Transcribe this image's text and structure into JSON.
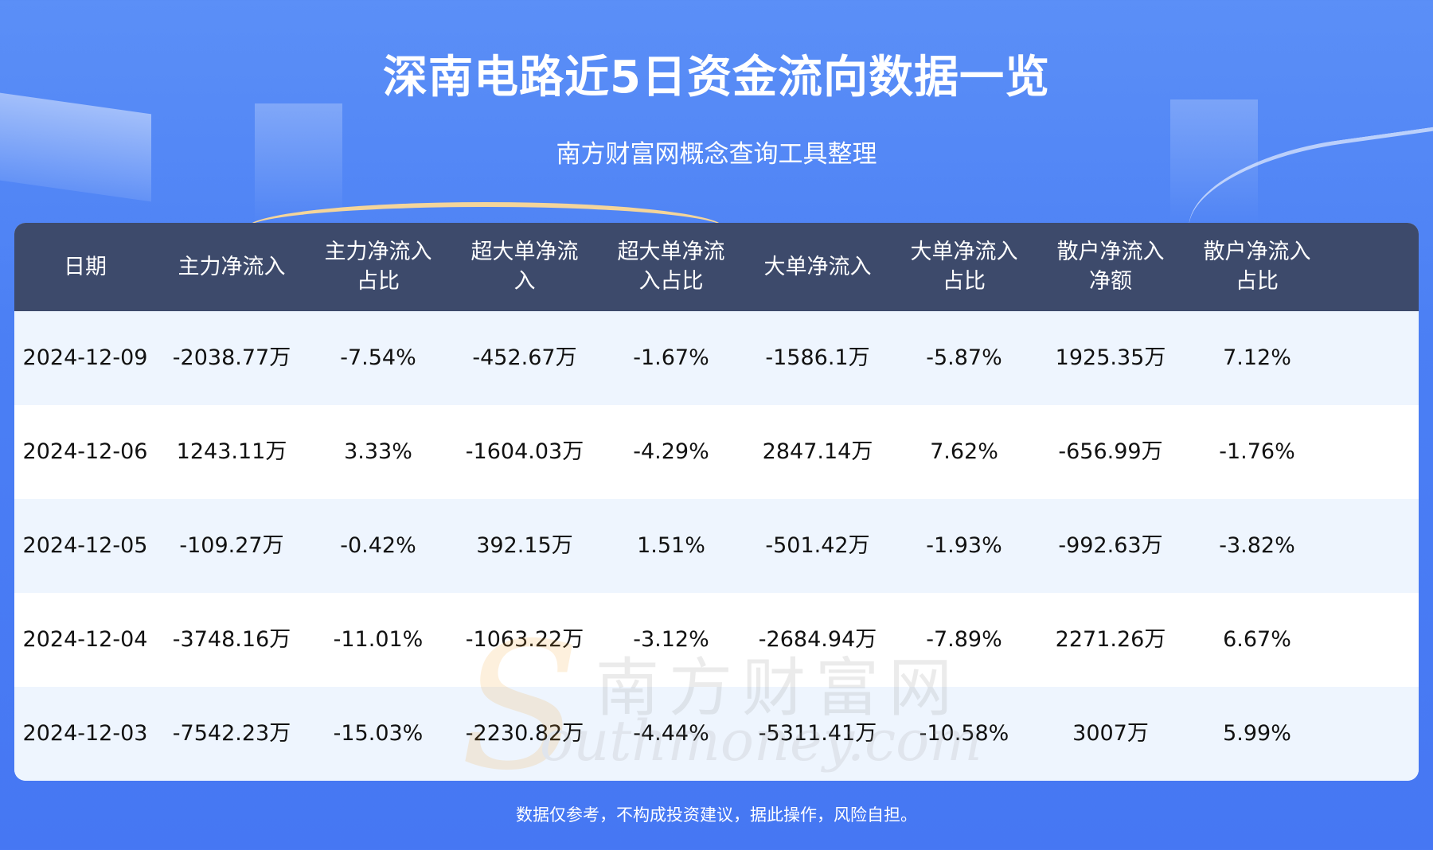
{
  "header": {
    "title": "深南电路近5日资金流向数据一览",
    "subtitle": "南方财富网概念查询工具整理"
  },
  "table": {
    "columns": [
      "日期",
      "主力净流入",
      "主力净流入\n占比",
      "超大单净流\n入",
      "超大单净流\n入占比",
      "大单净流入",
      "大单净流入\n占比",
      "散户净流入\n净额",
      "散户净流入\n占比"
    ],
    "rows": [
      [
        "2024-12-09",
        "-2038.77万",
        "-7.54%",
        "-452.67万",
        "-1.67%",
        "-1586.1万",
        "-5.87%",
        "1925.35万",
        "7.12%"
      ],
      [
        "2024-12-06",
        "1243.11万",
        "3.33%",
        "-1604.03万",
        "-4.29%",
        "2847.14万",
        "7.62%",
        "-656.99万",
        "-1.76%"
      ],
      [
        "2024-12-05",
        "-109.27万",
        "-0.42%",
        "392.15万",
        "1.51%",
        "-501.42万",
        "-1.93%",
        "-992.63万",
        "-3.82%"
      ],
      [
        "2024-12-04",
        "-3748.16万",
        "-11.01%",
        "-1063.22万",
        "-3.12%",
        "-2684.94万",
        "-7.89%",
        "2271.26万",
        "6.67%"
      ],
      [
        "2024-12-03",
        "-7542.23万",
        "-15.03%",
        "-2230.82万",
        "-4.44%",
        "-5311.41万",
        "-10.58%",
        "3007万",
        "5.99%"
      ]
    ]
  },
  "watermark": {
    "cn": "南方财富网",
    "en": "outhmoney.com",
    "letter": "S"
  },
  "footer": {
    "disclaimer": "数据仅参考，不构成投资建议，据此操作，风险自担。"
  },
  "colors": {
    "background": "#4a7ef5",
    "header_row": "#3d4a6b",
    "row_alt": "#eef5fe",
    "row": "#ffffff"
  }
}
